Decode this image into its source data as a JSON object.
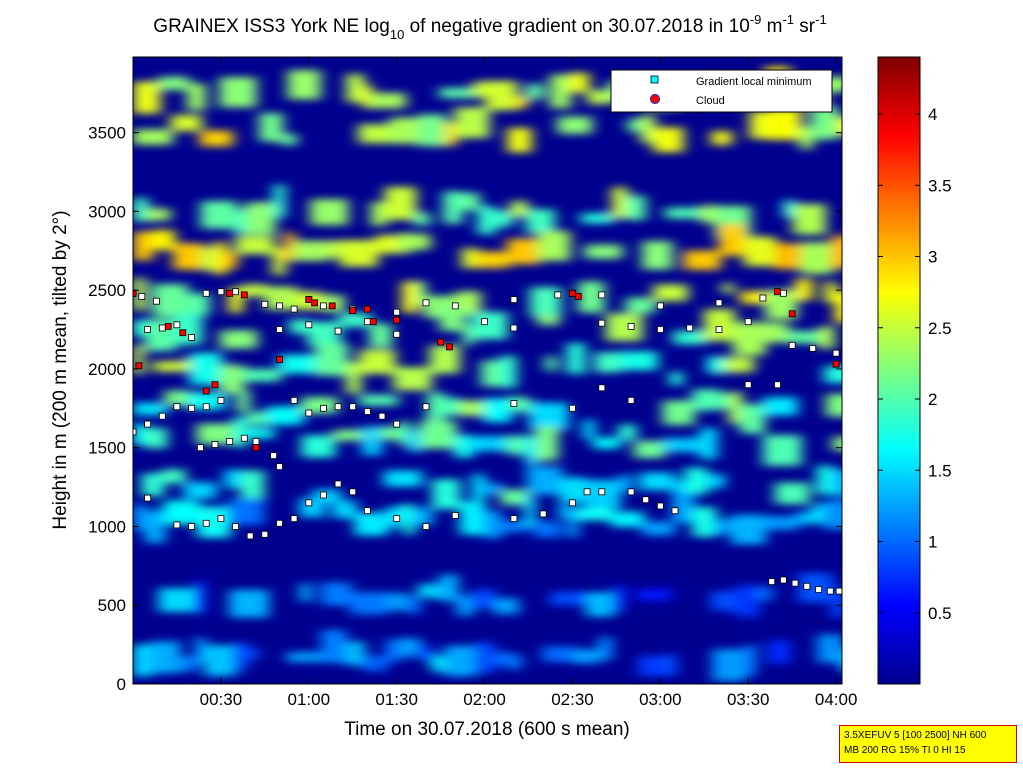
{
  "chart_data": {
    "type": "heatmap",
    "title": {
      "prefix": "GRAINEX ISS3 York NE log",
      "sub": "10",
      "mid": " of negative gradient on 30.07.2018 in 10",
      "exp1": "-9",
      "unit1": " m",
      "exp2": "-1",
      "unit2": " sr",
      "exp3": "-1"
    },
    "xlabel": "Time on 30.07.2018 (600 s mean)",
    "ylabel": "Height in m (200 m mean, tilted by 2°)",
    "x_ticks": [
      "00:30",
      "01:00",
      "01:30",
      "02:00",
      "02:30",
      "03:00",
      "03:30",
      "04:00"
    ],
    "x_tick_minutes": [
      30,
      60,
      90,
      120,
      150,
      180,
      210,
      240
    ],
    "xlim_minutes": [
      0,
      242
    ],
    "y_ticks": [
      "0",
      "500",
      "1000",
      "1500",
      "2000",
      "2500",
      "3000",
      "3500"
    ],
    "y_tick_values": [
      0,
      500,
      1000,
      1500,
      2000,
      2500,
      3000,
      3500
    ],
    "ylim": [
      0,
      3980
    ],
    "colorbar": {
      "ticks": [
        "0.5",
        "1",
        "1.5",
        "2",
        "2.5",
        "3",
        "3.5",
        "4"
      ],
      "tick_values": [
        0.5,
        1,
        1.5,
        2,
        2.5,
        3,
        3.5,
        4
      ],
      "range": [
        0.0,
        4.4
      ],
      "colormap": "jet"
    },
    "legend": {
      "position": "top-right",
      "entries": [
        {
          "label": "Gradient local minimum",
          "color": "#00ffff"
        },
        {
          "label": "Cloud",
          "color": "#ff0000"
        }
      ]
    },
    "layers": [
      {
        "y": 3750,
        "value": 2.4
      },
      {
        "y": 3500,
        "value": 2.5
      },
      {
        "y": 3000,
        "value": 2.1
      },
      {
        "y": 2750,
        "value": 2.6
      },
      {
        "y": 2450,
        "value": 2.3
      },
      {
        "y": 2250,
        "value": 2.2
      },
      {
        "y": 2000,
        "value": 2.1
      },
      {
        "y": 1750,
        "value": 1.9
      },
      {
        "y": 1550,
        "value": 1.8
      },
      {
        "y": 1250,
        "value": 1.6
      },
      {
        "y": 1050,
        "value": 1.4
      },
      {
        "y": 550,
        "value": 1.0
      },
      {
        "y": 180,
        "value": 1.1
      }
    ],
    "minimum_series": [
      {
        "name": "layer-2450",
        "x": [
          0,
          3,
          8,
          25,
          30,
          35,
          45,
          50,
          55,
          60,
          65,
          75,
          90,
          100,
          110,
          130,
          145,
          150,
          160,
          180,
          200,
          215,
          222
        ],
        "y": [
          2480,
          2460,
          2430,
          2480,
          2490,
          2490,
          2410,
          2400,
          2380,
          2440,
          2400,
          2380,
          2360,
          2420,
          2400,
          2440,
          2470,
          2480,
          2470,
          2400,
          2420,
          2450,
          2480
        ]
      },
      {
        "name": "layer-2250",
        "x": [
          5,
          10,
          15,
          20,
          50,
          60,
          70,
          80,
          90,
          120,
          130,
          160,
          170,
          180,
          190,
          200,
          210,
          225,
          232,
          240
        ],
        "y": [
          2250,
          2260,
          2280,
          2200,
          2250,
          2280,
          2240,
          2300,
          2220,
          2300,
          2260,
          2290,
          2270,
          2250,
          2260,
          2250,
          2300,
          2150,
          2130,
          2100
        ]
      },
      {
        "name": "layer-1750",
        "x": [
          5,
          10,
          15,
          20,
          25,
          30,
          55,
          60,
          65,
          70,
          75,
          80,
          85,
          90,
          100,
          130,
          150,
          160,
          170,
          210,
          220
        ],
        "y": [
          1650,
          1700,
          1760,
          1750,
          1760,
          1800,
          1800,
          1720,
          1750,
          1760,
          1760,
          1730,
          1700,
          1650,
          1760,
          1780,
          1750,
          1880,
          1800,
          1900,
          1900
        ]
      },
      {
        "name": "layer-1550",
        "x": [
          0,
          5,
          23,
          28,
          33,
          38,
          42,
          48,
          50
        ],
        "y": [
          1600,
          1650,
          1500,
          1520,
          1540,
          1560,
          1540,
          1450,
          1380
        ]
      },
      {
        "name": "layer-1000",
        "x": [
          5,
          15,
          20,
          25,
          30,
          35,
          40,
          45,
          50,
          55,
          60,
          65,
          70,
          75,
          80,
          90,
          100,
          110,
          130,
          140,
          150,
          155,
          160,
          170,
          175,
          180,
          185
        ],
        "y": [
          1180,
          1010,
          1000,
          1020,
          1050,
          1000,
          940,
          950,
          1020,
          1050,
          1150,
          1200,
          1270,
          1220,
          1100,
          1050,
          1000,
          1070,
          1050,
          1080,
          1150,
          1220,
          1220,
          1220,
          1170,
          1130,
          1100
        ]
      },
      {
        "name": "layer-650",
        "x": [
          218,
          222,
          226,
          230,
          234,
          238,
          241
        ],
        "y": [
          650,
          660,
          640,
          620,
          600,
          590,
          590
        ]
      }
    ],
    "cloud_series": {
      "x": [
        0,
        2,
        12,
        17,
        25,
        28,
        33,
        38,
        42,
        50,
        60,
        62,
        68,
        75,
        80,
        82,
        90,
        105,
        108,
        150,
        152,
        220,
        225,
        240
      ],
      "y": [
        2480,
        2020,
        2270,
        2230,
        1860,
        1900,
        2480,
        2470,
        1500,
        2060,
        2440,
        2420,
        2400,
        2370,
        2380,
        2300,
        2310,
        2170,
        2140,
        2480,
        2460,
        2490,
        2350,
        2030
      ]
    }
  },
  "note_box": {
    "line1": "3.5XEFUV 5 [100 2500] NH 600",
    "line2": "MB 200 RG 15% TI 0 HI 15"
  }
}
